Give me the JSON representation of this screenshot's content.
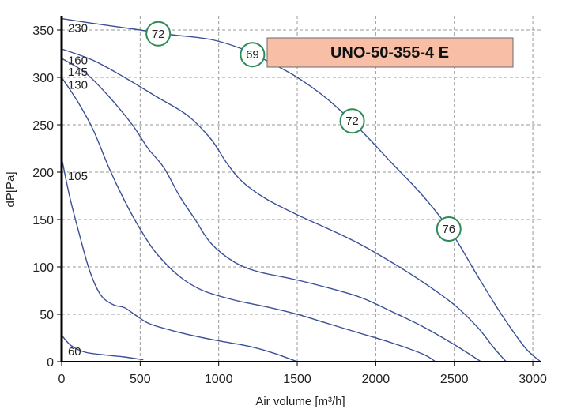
{
  "chart_data": {
    "type": "line",
    "title": "UNO-50-355-4 E",
    "xlabel": "Air volume [m³/h]",
    "ylabel": "dP[Pa]",
    "xlim": [
      0,
      3050
    ],
    "ylim": [
      0,
      365
    ],
    "xticks": [
      0,
      500,
      1000,
      1500,
      2000,
      2500,
      3000
    ],
    "yticks": [
      0,
      50,
      100,
      150,
      200,
      250,
      300,
      350
    ],
    "grid": true,
    "legend": "none",
    "colors": {
      "curve": "#3a4f96",
      "badge": "#2e8b57",
      "title_fill": "#f8bfa6",
      "grid": "#9a9a9a"
    },
    "series": [
      {
        "name": "230",
        "points": [
          [
            0,
            362
          ],
          [
            200,
            357
          ],
          [
            500,
            350
          ],
          [
            700,
            345
          ],
          [
            950,
            340
          ],
          [
            1150,
            330
          ],
          [
            1300,
            318
          ],
          [
            1500,
            300
          ],
          [
            1700,
            276
          ],
          [
            1900,
            245
          ],
          [
            2100,
            210
          ],
          [
            2300,
            175
          ],
          [
            2480,
            137
          ],
          [
            2650,
            90
          ],
          [
            2800,
            50
          ],
          [
            2950,
            15
          ],
          [
            3050,
            0
          ]
        ]
      },
      {
        "name": "160",
        "points": [
          [
            0,
            330
          ],
          [
            200,
            318
          ],
          [
            400,
            300
          ],
          [
            600,
            280
          ],
          [
            800,
            260
          ],
          [
            950,
            235
          ],
          [
            1050,
            210
          ],
          [
            1150,
            190
          ],
          [
            1300,
            172
          ],
          [
            1500,
            155
          ],
          [
            1700,
            140
          ],
          [
            1900,
            124
          ],
          [
            2100,
            105
          ],
          [
            2300,
            84
          ],
          [
            2500,
            60
          ],
          [
            2650,
            36
          ],
          [
            2750,
            15
          ],
          [
            2830,
            0
          ]
        ]
      },
      {
        "name": "145",
        "points": [
          [
            0,
            320
          ],
          [
            150,
            305
          ],
          [
            300,
            280
          ],
          [
            450,
            250
          ],
          [
            550,
            225
          ],
          [
            650,
            205
          ],
          [
            750,
            175
          ],
          [
            850,
            150
          ],
          [
            950,
            125
          ],
          [
            1100,
            105
          ],
          [
            1250,
            95
          ],
          [
            1450,
            88
          ],
          [
            1650,
            80
          ],
          [
            1900,
            68
          ],
          [
            2100,
            53
          ],
          [
            2300,
            37
          ],
          [
            2500,
            18
          ],
          [
            2670,
            0
          ]
        ]
      },
      {
        "name": "130",
        "points": [
          [
            0,
            300
          ],
          [
            100,
            275
          ],
          [
            200,
            245
          ],
          [
            300,
            205
          ],
          [
            400,
            170
          ],
          [
            500,
            140
          ],
          [
            600,
            115
          ],
          [
            750,
            90
          ],
          [
            900,
            75
          ],
          [
            1100,
            65
          ],
          [
            1300,
            58
          ],
          [
            1500,
            50
          ],
          [
            1700,
            40
          ],
          [
            1900,
            30
          ],
          [
            2100,
            20
          ],
          [
            2300,
            8
          ],
          [
            2380,
            0
          ]
        ]
      },
      {
        "name": "105",
        "points": [
          [
            0,
            215
          ],
          [
            50,
            175
          ],
          [
            120,
            130
          ],
          [
            180,
            95
          ],
          [
            250,
            70
          ],
          [
            330,
            60
          ],
          [
            400,
            57
          ],
          [
            480,
            48
          ],
          [
            560,
            40
          ],
          [
            700,
            33
          ],
          [
            850,
            27
          ],
          [
            1000,
            22
          ],
          [
            1200,
            16
          ],
          [
            1350,
            9
          ],
          [
            1500,
            0
          ]
        ]
      },
      {
        "name": "60",
        "points": [
          [
            0,
            28
          ],
          [
            60,
            17
          ],
          [
            150,
            10
          ],
          [
            280,
            7
          ],
          [
            400,
            5
          ],
          [
            520,
            2
          ]
        ]
      }
    ],
    "labels": [
      {
        "text": "230",
        "at": [
          30,
          352
        ]
      },
      {
        "text": "160",
        "at": [
          30,
          318
        ]
      },
      {
        "text": "145",
        "at": [
          30,
          306
        ]
      },
      {
        "text": "130",
        "at": [
          30,
          292
        ]
      },
      {
        "text": "105",
        "at": [
          30,
          196
        ]
      },
      {
        "text": "60",
        "at": [
          30,
          11
        ]
      }
    ],
    "annotations": [
      {
        "text": "72",
        "at": [
          615,
          346
        ]
      },
      {
        "text": "69",
        "at": [
          1215,
          324
        ]
      },
      {
        "text": "72",
        "at": [
          1850,
          254
        ]
      },
      {
        "text": "76",
        "at": [
          2465,
          140
        ]
      }
    ]
  }
}
